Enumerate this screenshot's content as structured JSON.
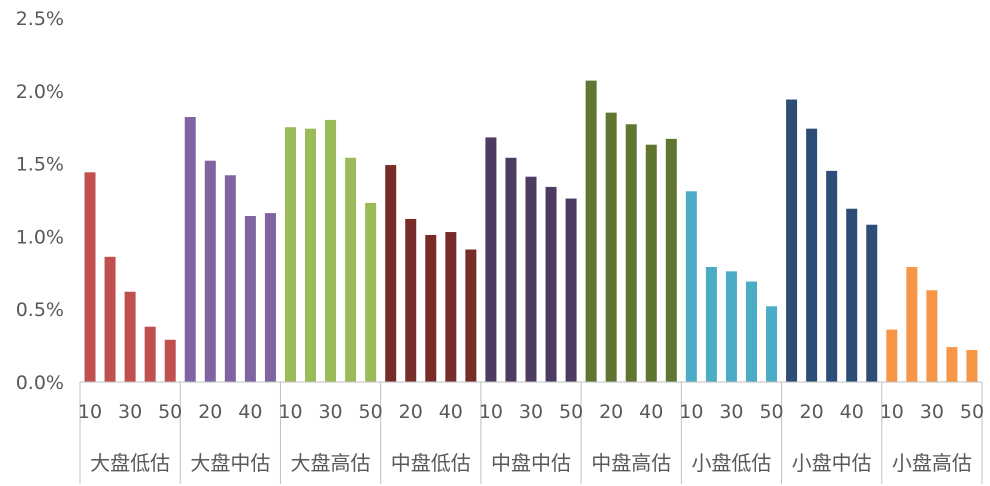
{
  "chart_data": {
    "type": "bar",
    "title": "",
    "xlabel": "",
    "ylabel": "",
    "ylim": [
      0,
      2.5
    ],
    "y_ticks": [
      "0.0%",
      "0.5%",
      "1.0%",
      "1.5%",
      "2.0%",
      "2.5%"
    ],
    "y_tick_values": [
      0,
      0.5,
      1.0,
      1.5,
      2.0,
      2.5
    ],
    "grid": false,
    "legend": "none",
    "sub_categories": [
      "10",
      "20",
      "30",
      "40",
      "50"
    ],
    "groups": [
      {
        "name": "大盘低估",
        "color": "#c0504d",
        "values": [
          1.44,
          0.86,
          0.62,
          0.38,
          0.29
        ],
        "tick_labels": [
          "10",
          "",
          "30",
          "",
          "50"
        ]
      },
      {
        "name": "大盘中估",
        "color": "#8064a2",
        "values": [
          1.82,
          1.52,
          1.42,
          1.14,
          1.16
        ],
        "tick_labels": [
          "",
          "20",
          "",
          "40",
          ""
        ]
      },
      {
        "name": "大盘高估",
        "color": "#9bbb59",
        "values": [
          1.75,
          1.74,
          1.8,
          1.54,
          1.23
        ],
        "tick_labels": [
          "10",
          "",
          "30",
          "",
          "50"
        ]
      },
      {
        "name": "中盘低估",
        "color": "#772c2a",
        "values": [
          1.49,
          1.12,
          1.01,
          1.03,
          0.91
        ],
        "tick_labels": [
          "",
          "20",
          "",
          "40",
          ""
        ]
      },
      {
        "name": "中盘中估",
        "color": "#4e3b62",
        "values": [
          1.68,
          1.54,
          1.41,
          1.34,
          1.26
        ],
        "tick_labels": [
          "10",
          "",
          "30",
          "",
          "50"
        ]
      },
      {
        "name": "中盘高估",
        "color": "#5f7530",
        "values": [
          2.07,
          1.85,
          1.77,
          1.63,
          1.67
        ],
        "tick_labels": [
          "",
          "20",
          "",
          "40",
          ""
        ]
      },
      {
        "name": "小盘低估",
        "color": "#4bacc6",
        "values": [
          1.31,
          0.79,
          0.76,
          0.69,
          0.52
        ],
        "tick_labels": [
          "10",
          "",
          "30",
          "",
          "50"
        ]
      },
      {
        "name": "小盘中估",
        "color": "#2c4d75",
        "values": [
          1.94,
          1.74,
          1.45,
          1.19,
          1.08
        ],
        "tick_labels": [
          "",
          "20",
          "",
          "40",
          ""
        ]
      },
      {
        "name": "小盘高估",
        "color": "#f79646",
        "values": [
          0.36,
          0.79,
          0.63,
          0.24,
          0.22
        ],
        "tick_labels": [
          "10",
          "",
          "30",
          "",
          "50"
        ]
      }
    ]
  }
}
